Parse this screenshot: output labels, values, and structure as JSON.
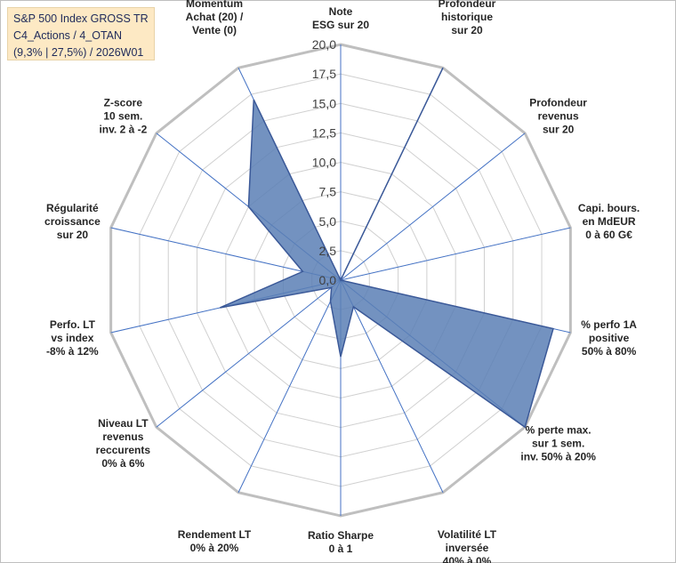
{
  "chart_data": {
    "type": "radar",
    "title_lines": [
      "S&P 500 Index GROSS TR",
      "C4_Actions / 4_OTAN",
      "(9,3% | 27,5%) / 2026W01"
    ],
    "axes": [
      [
        "Note",
        "ESG sur 20"
      ],
      [
        "Profondeur",
        "historique",
        "sur 20"
      ],
      [
        "Profondeur",
        "revenus",
        "sur 20"
      ],
      [
        "Capi. bours.",
        "en MdEUR",
        "0 à 60 G€"
      ],
      [
        "% perfo 1A",
        "positive",
        "50% à 80%"
      ],
      [
        "% perte max.",
        "sur 1 sem.",
        "inv. 50% à 20%"
      ],
      [
        "Volatilité LT",
        "inversée",
        "40% à 0%"
      ],
      [
        "Ratio Sharpe",
        "0 à 1"
      ],
      [
        "Rendement LT",
        "0% à 20%"
      ],
      [
        "Niveau LT",
        "revenus",
        "reccurents",
        "0% à 6%"
      ],
      [
        "Perfo. LT",
        "vs index",
        "-8% à 12%"
      ],
      [
        "Régularité",
        "croissance",
        "sur 20"
      ],
      [
        "Z-score",
        "10 sem.",
        "inv. 2 à -2"
      ],
      [
        "Momentum",
        "Achat (20) /",
        "Vente (0)"
      ]
    ],
    "scale": {
      "min": 0,
      "max": 20,
      "step": 2.5
    },
    "tick_labels": [
      "0,0",
      "2,5",
      "5,0",
      "7,5",
      "10,0",
      "12,5",
      "15,0",
      "17,5",
      "20,0"
    ],
    "series": [
      {
        "values": [
          0,
          20,
          0,
          0,
          18.5,
          20,
          2.5,
          6.5,
          2,
          1,
          10.5,
          3.3,
          10,
          17
        ]
      }
    ],
    "colors": {
      "fill": "#5b7fb5",
      "stroke": "#3b5998",
      "grid": "#d0d0d0",
      "outer": "#bfbfbf",
      "spoke": "#4472c4"
    }
  }
}
